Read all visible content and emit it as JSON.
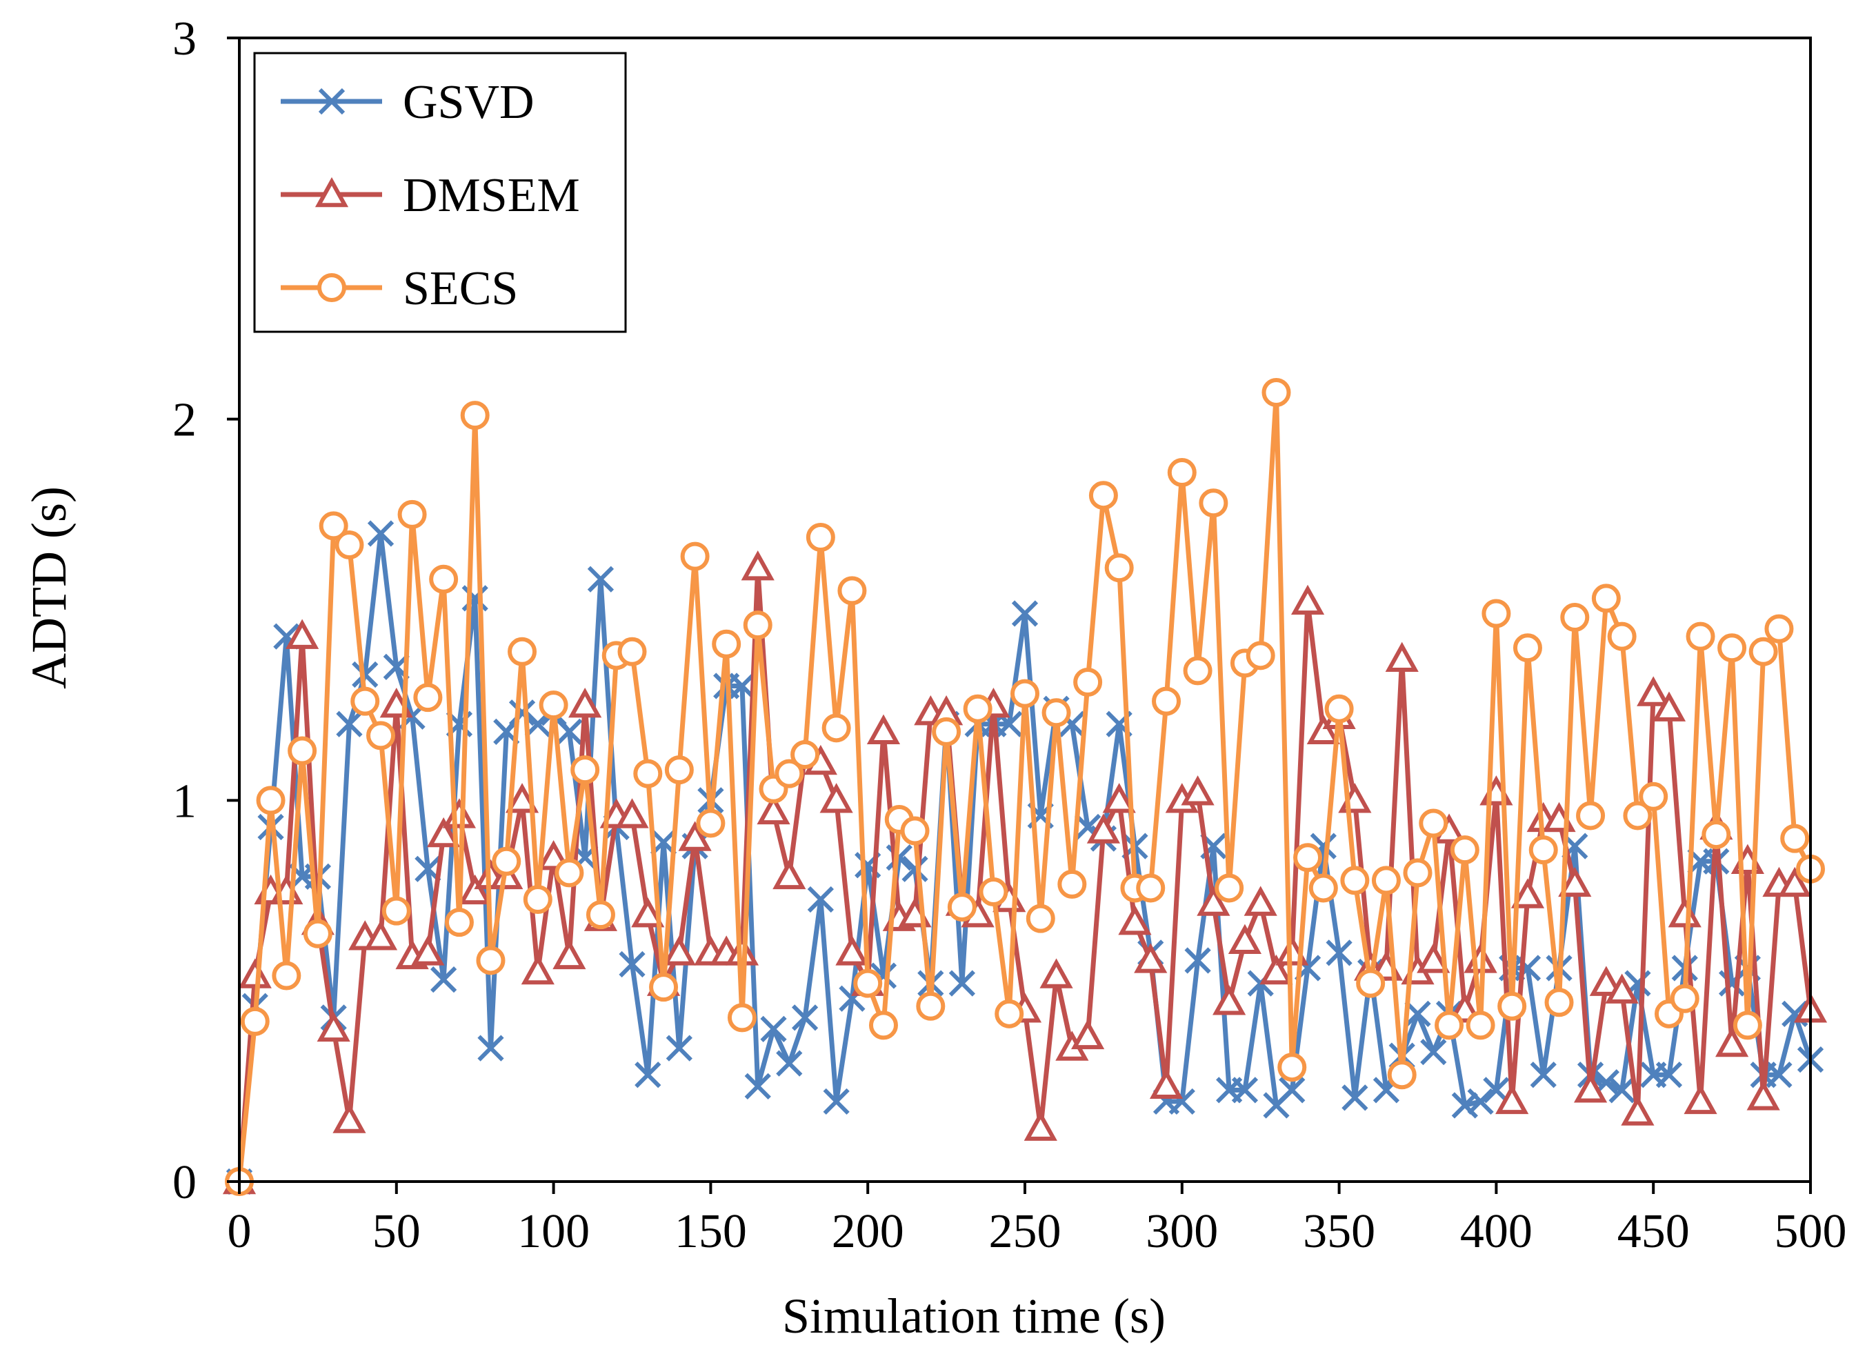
{
  "chart_data": {
    "type": "line",
    "title": "",
    "xlabel": "Simulation time (s)",
    "ylabel": "ADTD (s)",
    "xlim": [
      0,
      500
    ],
    "ylim": [
      0,
      3
    ],
    "xticks": [
      0,
      50,
      100,
      150,
      200,
      250,
      300,
      350,
      400,
      450,
      500
    ],
    "yticks": [
      0,
      1,
      2,
      3
    ],
    "grid": false,
    "legend_position": "top-left",
    "x": [
      0,
      5,
      10,
      15,
      20,
      25,
      30,
      35,
      40,
      45,
      50,
      55,
      60,
      65,
      70,
      75,
      80,
      85,
      90,
      95,
      100,
      105,
      110,
      115,
      120,
      125,
      130,
      135,
      140,
      145,
      150,
      155,
      160,
      165,
      170,
      175,
      180,
      185,
      190,
      195,
      200,
      205,
      210,
      215,
      220,
      225,
      230,
      235,
      240,
      245,
      250,
      255,
      260,
      265,
      270,
      275,
      280,
      285,
      290,
      295,
      300,
      305,
      310,
      315,
      320,
      325,
      330,
      335,
      340,
      345,
      350,
      355,
      360,
      365,
      370,
      375,
      380,
      385,
      390,
      395,
      400,
      405,
      410,
      415,
      420,
      425,
      430,
      435,
      440,
      445,
      450,
      455,
      460,
      465,
      470,
      475,
      480,
      485,
      490,
      495,
      500
    ],
    "series": [
      {
        "name": "GSVD",
        "color": "#4f81bd",
        "marker": "x",
        "values": [
          0,
          0.46,
          0.93,
          1.43,
          0.8,
          0.8,
          0.43,
          1.2,
          1.33,
          1.7,
          1.35,
          1.22,
          0.82,
          0.53,
          1.2,
          1.53,
          0.35,
          1.18,
          1.23,
          1.2,
          1.23,
          1.18,
          0.85,
          1.58,
          0.93,
          0.57,
          0.28,
          0.89,
          0.35,
          0.88,
          1.0,
          1.3,
          1.3,
          0.25,
          0.4,
          0.31,
          0.43,
          0.74,
          0.21,
          0.48,
          0.83,
          0.54,
          0.85,
          0.82,
          0.52,
          1.2,
          0.52,
          1.2,
          1.2,
          1.2,
          1.49,
          0.96,
          1.24,
          1.2,
          0.93,
          0.9,
          1.2,
          0.88,
          0.6,
          0.21,
          0.21,
          0.58,
          0.88,
          0.24,
          0.24,
          0.52,
          0.2,
          0.24,
          0.56,
          0.88,
          0.6,
          0.22,
          0.55,
          0.24,
          0.33,
          0.44,
          0.34,
          0.44,
          0.2,
          0.21,
          0.24,
          0.56,
          0.56,
          0.28,
          0.56,
          0.88,
          0.28,
          0.26,
          0.24,
          0.52,
          0.28,
          0.28,
          0.56,
          0.84,
          0.84,
          0.52,
          0.56,
          0.28,
          0.28,
          0.44,
          0.32
        ]
      },
      {
        "name": "DMSEM",
        "color": "#c0504d",
        "marker": "triangle",
        "values": [
          0,
          0.54,
          0.76,
          0.76,
          1.43,
          0.68,
          0.4,
          0.16,
          0.64,
          0.64,
          1.25,
          0.59,
          0.6,
          0.91,
          0.96,
          0.76,
          0.8,
          0.8,
          1.0,
          0.55,
          0.85,
          0.59,
          1.25,
          0.69,
          0.96,
          0.96,
          0.7,
          0.52,
          0.6,
          0.9,
          0.6,
          0.6,
          0.6,
          1.61,
          0.97,
          0.8,
          1.12,
          1.1,
          1.0,
          0.6,
          0.52,
          1.18,
          0.69,
          0.7,
          1.23,
          1.23,
          0.73,
          0.7,
          1.25,
          0.74,
          0.45,
          0.14,
          0.54,
          0.35,
          0.38,
          0.92,
          1.0,
          0.68,
          0.58,
          0.25,
          1.0,
          1.02,
          0.73,
          0.47,
          0.63,
          0.73,
          0.55,
          0.6,
          1.52,
          1.18,
          1.22,
          1.0,
          0.56,
          0.56,
          1.37,
          0.55,
          0.58,
          0.92,
          0.45,
          0.58,
          1.02,
          0.21,
          0.75,
          0.95,
          0.95,
          0.78,
          0.24,
          0.52,
          0.5,
          0.18,
          1.28,
          1.24,
          0.7,
          0.21,
          0.93,
          0.36,
          0.84,
          0.22,
          0.78,
          0.78,
          0.45
        ]
      },
      {
        "name": "SECS",
        "color": "#f79646",
        "marker": "circle",
        "values": [
          0,
          0.42,
          1.0,
          0.54,
          1.13,
          0.65,
          1.72,
          1.67,
          1.26,
          1.17,
          0.71,
          1.75,
          1.27,
          1.58,
          0.68,
          2.01,
          0.58,
          0.84,
          1.39,
          0.74,
          1.25,
          0.81,
          1.08,
          0.7,
          1.38,
          1.39,
          1.07,
          0.51,
          1.08,
          1.64,
          0.94,
          1.41,
          0.43,
          1.46,
          1.03,
          1.07,
          1.12,
          1.69,
          1.19,
          1.55,
          0.52,
          0.41,
          0.95,
          0.92,
          0.46,
          1.18,
          0.72,
          1.24,
          0.76,
          0.44,
          1.28,
          0.69,
          1.23,
          0.78,
          1.31,
          1.8,
          1.61,
          0.77,
          0.77,
          1.26,
          1.86,
          1.34,
          1.78,
          0.77,
          1.36,
          1.38,
          2.07,
          0.3,
          0.85,
          0.77,
          1.24,
          0.79,
          0.52,
          0.79,
          0.28,
          0.81,
          0.94,
          0.41,
          0.87,
          0.41,
          1.49,
          0.46,
          1.4,
          0.87,
          0.47,
          1.48,
          0.96,
          1.53,
          1.43,
          0.96,
          1.01,
          0.44,
          0.48,
          1.43,
          0.91,
          1.4,
          0.41,
          1.39,
          1.45,
          0.9,
          0.82
        ]
      }
    ]
  }
}
